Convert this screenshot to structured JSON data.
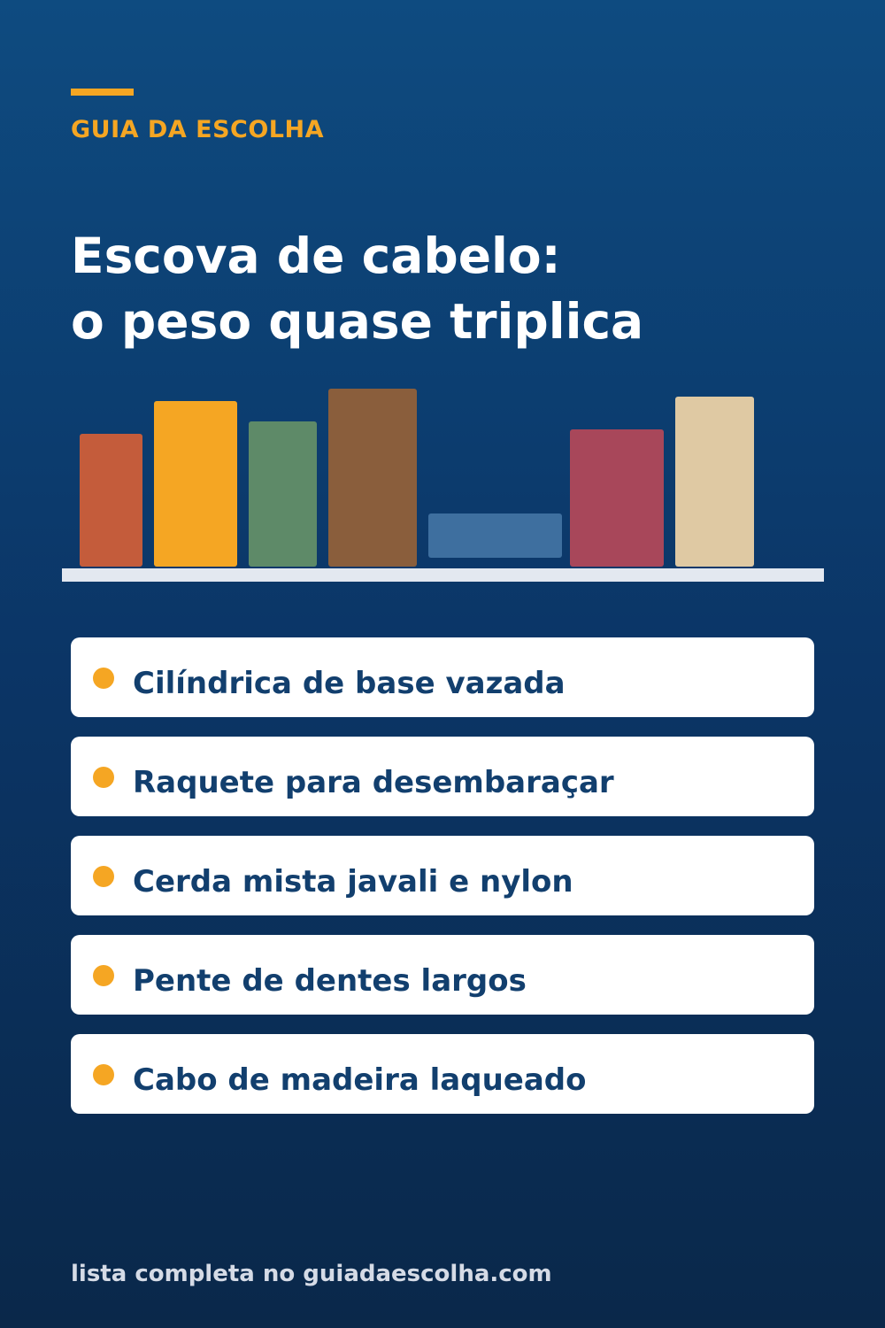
{
  "header": {
    "eyebrow": "GUIA DA ESCOLHA",
    "headline_line1": "Escova de cabelo:",
    "headline_line2": "o peso quase triplica"
  },
  "illustration": {
    "description_icon": "books-on-shelf-icon",
    "colors": {
      "shelf": "#e3e8f0",
      "book1": "#c45c3b",
      "book2": "#f5a623",
      "book3": "#5e8a68",
      "book4": "#8a5e3c",
      "book5": "#3e6f9f",
      "book6": "#a8475a",
      "book7": "#dfc9a3"
    }
  },
  "list": {
    "items": [
      {
        "label": "Cilíndrica de base vazada"
      },
      {
        "label": "Raquete para desembaraçar"
      },
      {
        "label": "Cerda mista javali e nylon"
      },
      {
        "label": "Pente de dentes largos"
      },
      {
        "label": "Cabo de madeira laqueado"
      }
    ]
  },
  "footer": {
    "text": "lista completa no guiadaescolha.com"
  },
  "colors": {
    "accent": "#f5a623",
    "item_text": "#123f6e",
    "background_top": "#0e4b80",
    "background_bottom": "#0a284a"
  }
}
